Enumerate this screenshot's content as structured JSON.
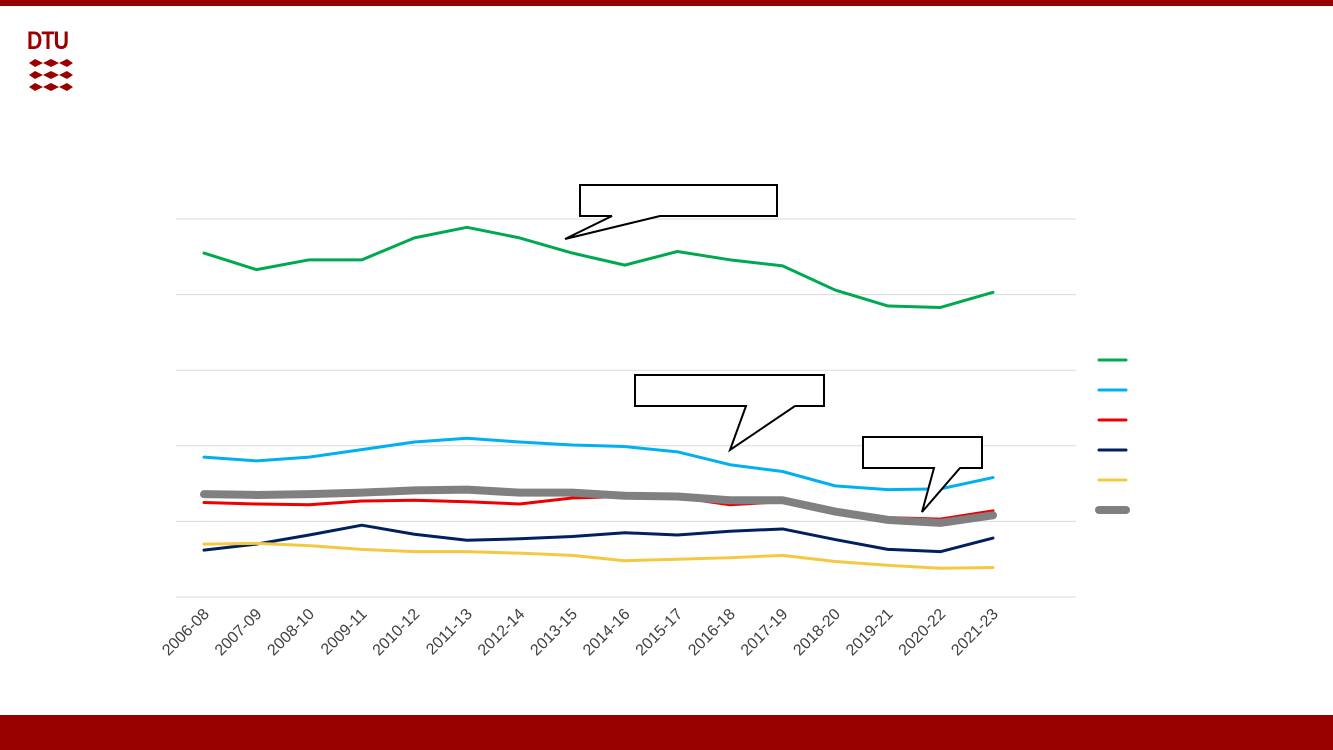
{
  "brand": {
    "logo_text": "DTU",
    "primary_color": "#990000"
  },
  "chart_data": {
    "type": "line",
    "title": "",
    "xlabel": "",
    "ylabel": "",
    "categories": [
      "2006-08",
      "2007-09",
      "2008-10",
      "2009-11",
      "2010-12",
      "2011-13",
      "2012-14",
      "2013-15",
      "2014-16",
      "2015-17",
      "2016-18",
      "2017-19",
      "2018-20",
      "2019-21",
      "2020-22",
      "2021-23"
    ],
    "y_axis_range": [
      0,
      5
    ],
    "grid": true,
    "legend_position": "right",
    "legend_labels_visible": false,
    "series": [
      {
        "color": "#00a94f",
        "stroke": 3,
        "values": [
          4.55,
          4.33,
          4.46,
          4.46,
          4.75,
          4.89,
          4.75,
          4.55,
          4.39,
          4.57,
          4.46,
          4.38,
          4.06,
          3.85,
          3.83,
          4.03
        ]
      },
      {
        "color": "#00b0f0",
        "stroke": 3,
        "values": [
          1.85,
          1.8,
          1.85,
          1.95,
          2.05,
          2.1,
          2.05,
          2.01,
          1.99,
          1.92,
          1.75,
          1.66,
          1.47,
          1.42,
          1.43,
          1.58
        ]
      },
      {
        "color": "#ee0000",
        "stroke": 3,
        "values": [
          1.25,
          1.23,
          1.22,
          1.27,
          1.28,
          1.26,
          1.23,
          1.31,
          1.33,
          1.32,
          1.22,
          1.26,
          1.13,
          1.05,
          1.03,
          1.14
        ]
      },
      {
        "color": "#002060",
        "stroke": 3,
        "values": [
          0.62,
          0.7,
          0.82,
          0.95,
          0.83,
          0.75,
          0.77,
          0.8,
          0.85,
          0.82,
          0.87,
          0.9,
          0.76,
          0.63,
          0.6,
          0.78
        ]
      },
      {
        "color": "#f5c842",
        "stroke": 3,
        "values": [
          0.7,
          0.71,
          0.68,
          0.63,
          0.6,
          0.6,
          0.58,
          0.55,
          0.48,
          0.5,
          0.52,
          0.55,
          0.47,
          0.42,
          0.38,
          0.39
        ]
      },
      {
        "color": "#808080",
        "stroke": 8,
        "values": [
          1.36,
          1.35,
          1.36,
          1.38,
          1.41,
          1.42,
          1.38,
          1.38,
          1.34,
          1.33,
          1.28,
          1.28,
          1.13,
          1.02,
          0.98,
          1.08
        ]
      }
    ]
  }
}
